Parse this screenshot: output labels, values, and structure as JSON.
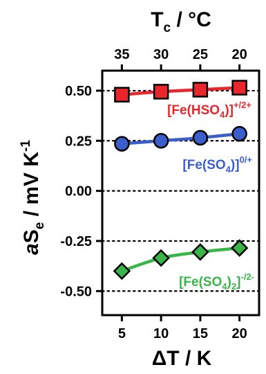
{
  "chart_data": {
    "type": "line",
    "title": "",
    "xlabel": {
      "main": "ΔT",
      "sep": " / ",
      "unit": "K"
    },
    "ylabel": {
      "italic": "a",
      "main": "S",
      "sub": "e",
      "sep": " / ",
      "unit": "mV K",
      "sup": "-1"
    },
    "top_xlabel": {
      "main": "T",
      "sub": "c",
      "sep": " / ",
      "unit": "°C"
    },
    "x": [
      5,
      10,
      15,
      20
    ],
    "x_tick_labels": [
      "5",
      "10",
      "15",
      "20"
    ],
    "top_tick_labels": [
      "35",
      "30",
      "25",
      "20"
    ],
    "xlim": [
      2.5,
      22.5
    ],
    "ylim": [
      -0.62,
      0.6
    ],
    "y_ticks": [
      0.5,
      0.25,
      0.0,
      -0.25,
      -0.5
    ],
    "y_tick_labels": [
      "0.50",
      "0.25",
      "0.00",
      "-0.25",
      "-0.50"
    ],
    "dotted_gridlines_at": [
      0.5,
      0.25,
      0.0,
      -0.25,
      -0.5
    ],
    "series": [
      {
        "label_parts": [
          {
            "t": "[Fe(HSO"
          },
          {
            "t": "4",
            "sub": true
          },
          {
            "t": ")]"
          },
          {
            "t": "+/2+",
            "sup": true
          }
        ],
        "values": [
          0.48,
          0.495,
          0.505,
          0.515
        ],
        "color": "#e8262b",
        "marker": "square"
      },
      {
        "label_parts": [
          {
            "t": "[Fe(SO"
          },
          {
            "t": "4",
            "sub": true
          },
          {
            "t": ")]"
          },
          {
            "t": "0/+",
            "sup": true
          }
        ],
        "values": [
          0.235,
          0.25,
          0.265,
          0.285
        ],
        "color": "#3a5fcd",
        "marker": "circle"
      },
      {
        "label_parts": [
          {
            "t": "[Fe(SO"
          },
          {
            "t": "4",
            "sub": true
          },
          {
            "t": ")"
          },
          {
            "t": "2",
            "sub": true
          },
          {
            "t": "]"
          },
          {
            "t": "-/2-",
            "sup": true
          }
        ],
        "values": [
          -0.4,
          -0.335,
          -0.305,
          -0.285
        ],
        "color": "#3ab54a",
        "marker": "diamond"
      }
    ],
    "grid": false,
    "legend": "inline labels beside each series"
  }
}
